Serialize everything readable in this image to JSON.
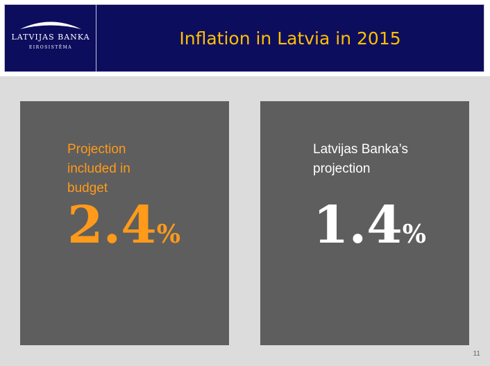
{
  "header": {
    "logo": {
      "name": "LATVIJAS BANKA",
      "sub": "EIROSISTĒMA"
    },
    "title": "Inflation in Latvia in 2015"
  },
  "panels": [
    {
      "label_lines": [
        "Projection",
        "included in",
        "budget"
      ],
      "value": "2.4",
      "unit": "%",
      "color": "#ff9a1a"
    },
    {
      "label_lines": [
        "Latvijas Banka’s",
        "projection"
      ],
      "value": "1.4",
      "unit": "%",
      "color": "#ffffff"
    }
  ],
  "colors": {
    "header_bg": "#0d0d5e",
    "title": "#ffc000",
    "panel_bg": "#5e5e5e",
    "page_bg": "#dcdcdc"
  },
  "page_number": "11"
}
